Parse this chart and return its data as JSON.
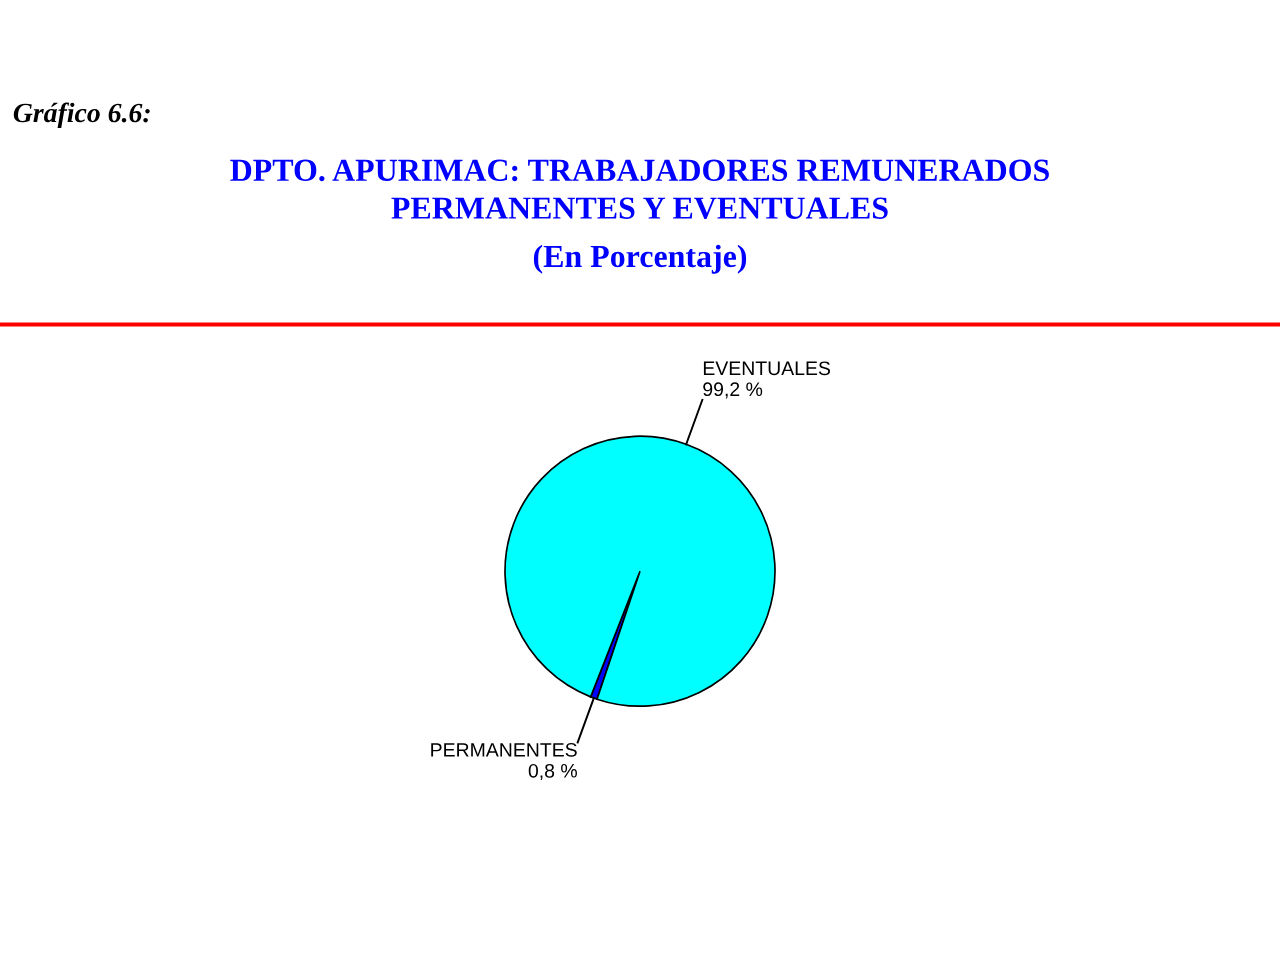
{
  "chart_data": {
    "type": "pie",
    "title": "DPTO. APURIMAC: TRABAJADORES REMUNERADOS\nPERMANENTES Y EVENTUALES",
    "subtitle": "(En Porcentaje)",
    "annotations": [
      "Gráfico 6.6:"
    ],
    "categories": [
      "PERMANENTES",
      "EVENTUALES"
    ],
    "values": [
      0.8,
      99.2
    ],
    "value_labels": [
      "0,8 %",
      "99,2 %"
    ],
    "colors": [
      "#0000ff",
      "#00ffff"
    ]
  }
}
